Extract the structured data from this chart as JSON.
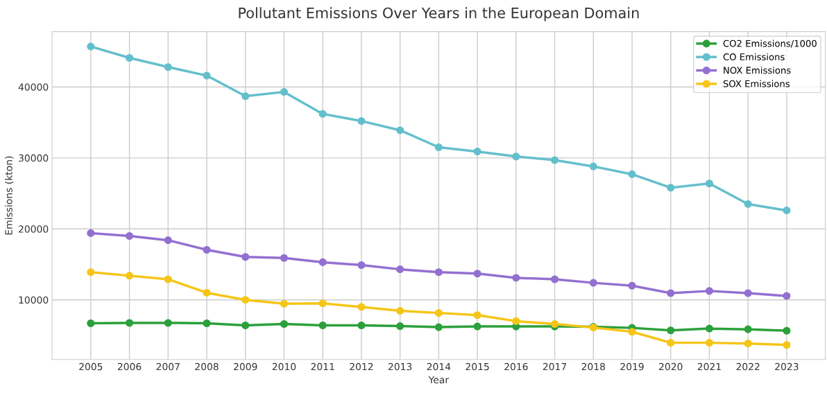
{
  "chart_data": {
    "type": "line",
    "title": "Pollutant Emissions Over Years in the European Domain",
    "xlabel": "Year",
    "ylabel": "Emissions (kton)",
    "categories": [
      "2005",
      "2006",
      "2007",
      "2008",
      "2009",
      "2010",
      "2011",
      "2012",
      "2013",
      "2014",
      "2015",
      "2016",
      "2017",
      "2018",
      "2019",
      "2020",
      "2021",
      "2022",
      "2023"
    ],
    "series": [
      {
        "name": "CO2 Emissions/1000",
        "color": "#2ca03c",
        "values": [
          6700,
          6750,
          6750,
          6700,
          6400,
          6600,
          6400,
          6400,
          6300,
          6150,
          6250,
          6250,
          6250,
          6200,
          6050,
          5700,
          5950,
          5850,
          5650
        ]
      },
      {
        "name": "CO Emissions",
        "color": "#64bfcc",
        "values": [
          45700,
          44100,
          42800,
          41600,
          38700,
          39300,
          36200,
          35200,
          33900,
          31500,
          30900,
          30200,
          29700,
          28800,
          27700,
          25800,
          26400,
          23500,
          22600
        ]
      },
      {
        "name": "NOX Emissions",
        "color": "#9370d0",
        "values": [
          19400,
          19000,
          18400,
          17050,
          16050,
          15900,
          15300,
          14900,
          14300,
          13900,
          13700,
          13100,
          12900,
          12400,
          12000,
          10950,
          11250,
          10950,
          10550
        ]
      },
      {
        "name": "SOX Emissions",
        "color": "#f5c518",
        "values": [
          13900,
          13400,
          12900,
          11000,
          10000,
          9450,
          9500,
          9000,
          8450,
          8150,
          7850,
          7000,
          6600,
          6100,
          5500,
          3950,
          3950,
          3850,
          3650
        ]
      }
    ],
    "ylim": [
      1600,
      47800
    ],
    "yticks": [
      10000,
      20000,
      30000,
      40000
    ],
    "grid": true,
    "legend": "top right",
    "marker": "circle",
    "line_style": "solid"
  }
}
